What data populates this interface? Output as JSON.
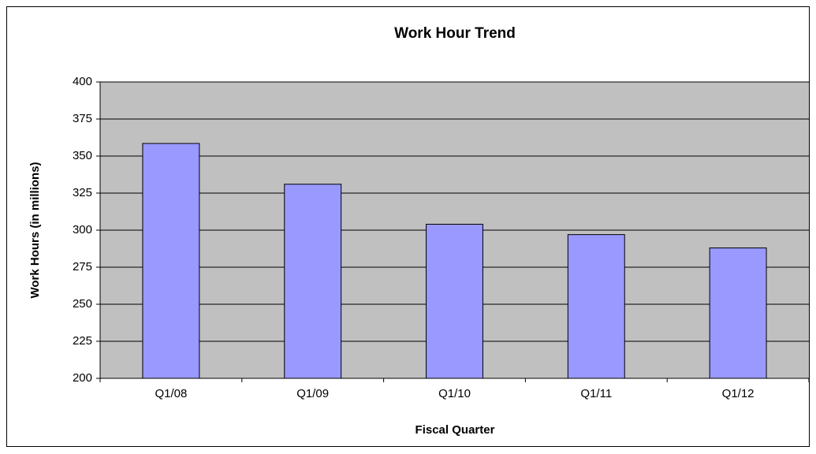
{
  "chart_data": {
    "type": "bar",
    "title": "Work Hour Trend",
    "x_label": "Fiscal Quarter",
    "y_label": "Work Hours (in millions)",
    "categories": [
      "Q1/08",
      "Q1/09",
      "Q1/10",
      "Q1/11",
      "Q1/12"
    ],
    "values": [
      358.5,
      331,
      304,
      297,
      288
    ],
    "color": "#9999ff",
    "ylim": [
      200,
      400
    ],
    "yticks": [
      200,
      225,
      250,
      275,
      300,
      325,
      350,
      375,
      400
    ],
    "grid": true
  }
}
